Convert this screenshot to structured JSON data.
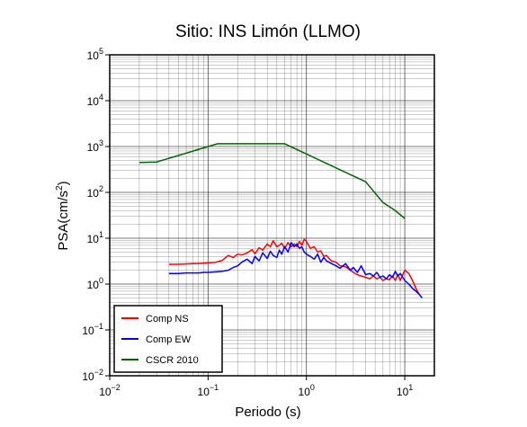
{
  "chart_data": {
    "type": "line",
    "title": "Sitio: INS Limón (LLMO)",
    "xlabel": "Periodo (s)",
    "ylabel_base": "PSA(cm/s",
    "ylabel_exp": "2",
    "ylabel_close": ")",
    "x_scale": "log",
    "y_scale": "log",
    "xlim": [
      0.01,
      20
    ],
    "ylim": [
      0.01,
      100000
    ],
    "grid": true,
    "legend_position": "bottom-left",
    "x_ticks": [
      {
        "value": 0.01,
        "base": "10",
        "exp": "−2"
      },
      {
        "value": 0.1,
        "base": "10",
        "exp": "−1"
      },
      {
        "value": 1,
        "base": "10",
        "exp": "0"
      },
      {
        "value": 10,
        "base": "10",
        "exp": "1"
      }
    ],
    "y_ticks": [
      {
        "value": 0.01,
        "base": "10",
        "exp": "−2"
      },
      {
        "value": 0.1,
        "base": "10",
        "exp": "−1"
      },
      {
        "value": 1,
        "base": "10",
        "exp": "0"
      },
      {
        "value": 10,
        "base": "10",
        "exp": "1"
      },
      {
        "value": 100,
        "base": "10",
        "exp": "2"
      },
      {
        "value": 1000,
        "base": "10",
        "exp": "3"
      },
      {
        "value": 10000,
        "base": "10",
        "exp": "4"
      },
      {
        "value": 100000,
        "base": "10",
        "exp": "5"
      }
    ],
    "series": [
      {
        "name": "Comp NS",
        "color": "#ff0000",
        "x": [
          0.04,
          0.05,
          0.06,
          0.07,
          0.08,
          0.09,
          0.1,
          0.12,
          0.14,
          0.16,
          0.18,
          0.2,
          0.22,
          0.25,
          0.28,
          0.3,
          0.33,
          0.36,
          0.4,
          0.43,
          0.46,
          0.5,
          0.53,
          0.56,
          0.6,
          0.65,
          0.7,
          0.75,
          0.8,
          0.85,
          0.9,
          0.95,
          1.0,
          1.1,
          1.2,
          1.3,
          1.4,
          1.5,
          1.6,
          1.8,
          2.0,
          2.2,
          2.5,
          2.8,
          3.0,
          3.3,
          3.6,
          4.0,
          4.4,
          4.8,
          5.2,
          5.6,
          6.0,
          6.5,
          7.0,
          7.5,
          8.0,
          8.5,
          9.0,
          10.0,
          11.0,
          12.0,
          13.0,
          14.0,
          15.0
        ],
        "y": [
          2.7,
          2.7,
          2.75,
          2.8,
          2.8,
          2.85,
          2.9,
          3.0,
          3.3,
          4.2,
          3.8,
          4.5,
          4.3,
          4.8,
          5.6,
          4.6,
          6.2,
          5.5,
          7.5,
          6.5,
          8.8,
          6.5,
          7.0,
          7.8,
          6.0,
          8.0,
          6.5,
          7.5,
          6.5,
          8.5,
          7.0,
          9.5,
          8.5,
          6.0,
          6.5,
          5.0,
          5.3,
          4.0,
          4.2,
          3.2,
          3.0,
          2.5,
          2.4,
          2.0,
          1.8,
          1.6,
          1.5,
          1.4,
          1.3,
          1.5,
          1.3,
          1.4,
          1.2,
          1.3,
          1.25,
          1.5,
          1.2,
          1.6,
          1.2,
          2.0,
          1.7,
          1.2,
          0.8,
          0.6,
          0.5
        ]
      },
      {
        "name": "Comp EW",
        "color": "#0000ff",
        "x": [
          0.04,
          0.05,
          0.06,
          0.07,
          0.08,
          0.09,
          0.1,
          0.12,
          0.14,
          0.16,
          0.18,
          0.2,
          0.22,
          0.25,
          0.28,
          0.3,
          0.33,
          0.36,
          0.4,
          0.43,
          0.46,
          0.5,
          0.53,
          0.56,
          0.6,
          0.65,
          0.7,
          0.75,
          0.8,
          0.85,
          0.9,
          0.95,
          1.0,
          1.1,
          1.2,
          1.3,
          1.4,
          1.5,
          1.6,
          1.8,
          2.0,
          2.2,
          2.5,
          2.8,
          3.0,
          3.3,
          3.6,
          4.0,
          4.4,
          4.8,
          5.2,
          5.6,
          6.0,
          6.5,
          7.0,
          7.5,
          8.0,
          8.5,
          9.0,
          10.0,
          11.0,
          12.0,
          13.0,
          14.0,
          15.0
        ],
        "y": [
          1.7,
          1.7,
          1.75,
          1.75,
          1.75,
          1.8,
          1.8,
          1.85,
          1.9,
          2.0,
          2.3,
          2.5,
          3.0,
          3.5,
          2.8,
          4.0,
          3.2,
          4.8,
          3.6,
          5.2,
          4.2,
          3.8,
          5.5,
          4.5,
          6.5,
          5.0,
          8.0,
          6.5,
          7.5,
          6.0,
          6.5,
          5.0,
          4.5,
          4.0,
          3.5,
          4.5,
          3.0,
          3.8,
          3.2,
          2.8,
          2.5,
          2.2,
          2.8,
          2.0,
          2.3,
          1.8,
          2.5,
          1.6,
          1.7,
          1.5,
          1.8,
          1.4,
          1.5,
          1.3,
          1.6,
          1.4,
          1.9,
          1.5,
          1.7,
          1.2,
          1.0,
          0.8,
          0.7,
          0.6,
          0.5
        ]
      },
      {
        "name": "CSCR 2010",
        "color": "#006400",
        "x": [
          0.02,
          0.03,
          0.125,
          0.6,
          4.0,
          6.0,
          8.0,
          10.0
        ],
        "y": [
          450,
          460,
          1150,
          1150,
          170,
          60,
          40,
          27
        ]
      }
    ]
  }
}
